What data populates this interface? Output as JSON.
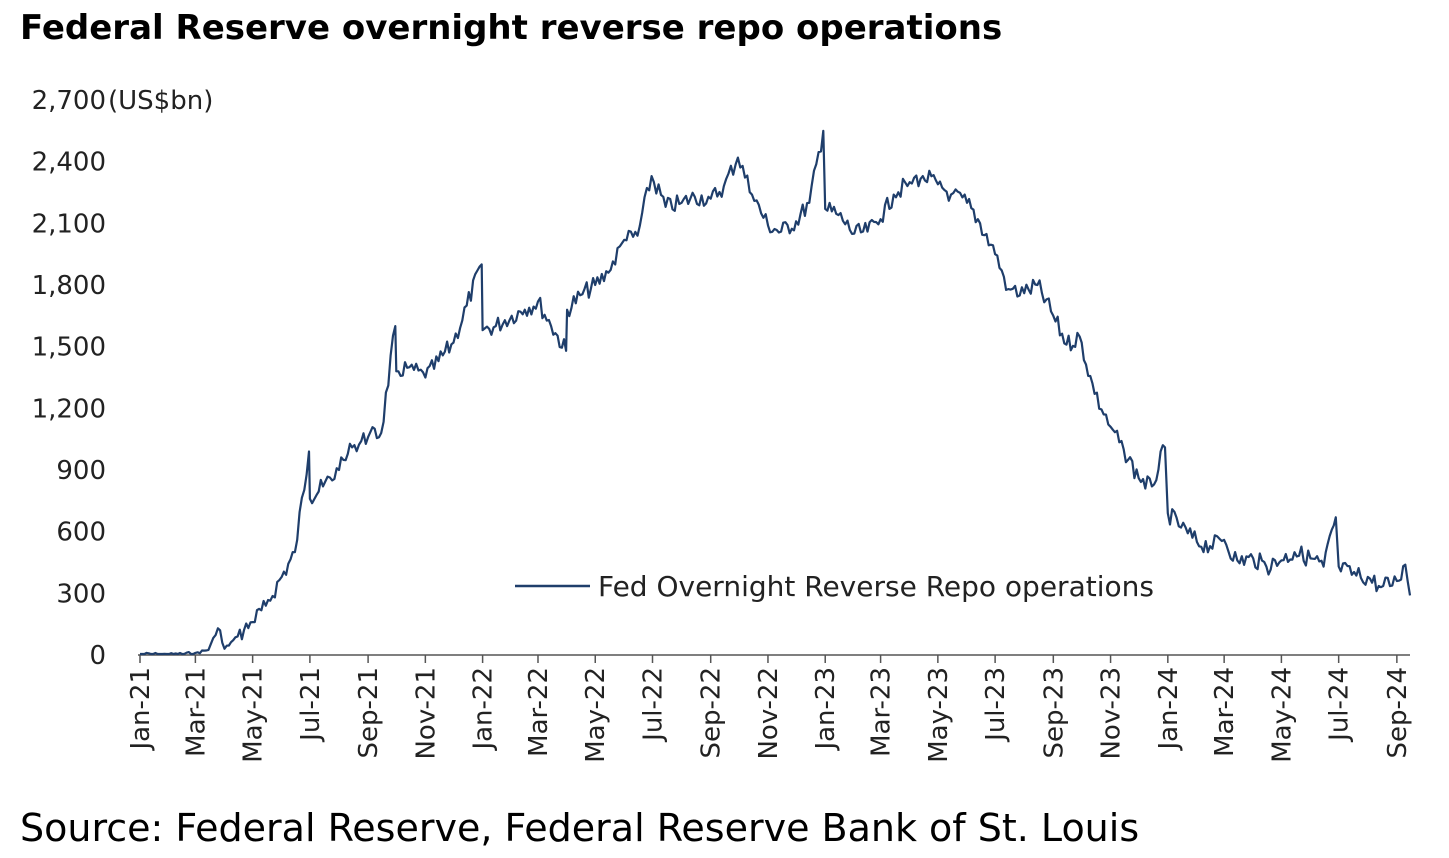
{
  "chart_data": {
    "type": "line",
    "title": "Federal Reserve overnight reverse repo operations",
    "ylabel": "(US$bn)",
    "ylim": [
      0,
      2700
    ],
    "yticks": [
      "0",
      "300",
      "600",
      "900",
      "1,200",
      "1,500",
      "1,800",
      "2,100",
      "2,400",
      "2,700"
    ],
    "ytick_values": [
      0,
      300,
      600,
      900,
      1200,
      1500,
      1800,
      2100,
      2400,
      2700
    ],
    "xticks": [
      "Jan-21",
      "Mar-21",
      "May-21",
      "Jul-21",
      "Sep-21",
      "Nov-21",
      "Jan-22",
      "Mar-22",
      "May-22",
      "Jul-22",
      "Sep-22",
      "Nov-22",
      "Jan-23",
      "Mar-23",
      "May-23",
      "Jul-23",
      "Sep-23",
      "Nov-23",
      "Jan-24",
      "Mar-24",
      "May-24",
      "Jul-24",
      "Sep-24"
    ],
    "legend_position": "lower-right",
    "grid": false,
    "series": [
      {
        "name": "Fed Overnight Reverse Repo operations",
        "color": "#1f3e6b",
        "x": [
          "2021-01-01",
          "2021-01-15",
          "2021-02-01",
          "2021-02-15",
          "2021-03-01",
          "2021-03-15",
          "2021-03-25",
          "2021-04-01",
          "2021-04-15",
          "2021-05-01",
          "2021-05-15",
          "2021-06-01",
          "2021-06-15",
          "2021-06-30",
          "2021-07-01",
          "2021-07-15",
          "2021-08-01",
          "2021-08-15",
          "2021-09-01",
          "2021-09-15",
          "2021-09-30",
          "2021-10-01",
          "2021-10-15",
          "2021-11-01",
          "2021-11-15",
          "2021-12-01",
          "2021-12-15",
          "2021-12-31",
          "2022-01-01",
          "2022-01-15",
          "2022-02-01",
          "2022-02-15",
          "2022-03-01",
          "2022-03-15",
          "2022-03-31",
          "2022-04-01",
          "2022-04-15",
          "2022-05-01",
          "2022-05-15",
          "2022-06-01",
          "2022-06-15",
          "2022-06-30",
          "2022-07-15",
          "2022-08-01",
          "2022-08-15",
          "2022-09-01",
          "2022-09-15",
          "2022-09-30",
          "2022-10-15",
          "2022-11-01",
          "2022-11-15",
          "2022-12-01",
          "2022-12-15",
          "2022-12-30",
          "2023-01-01",
          "2023-01-15",
          "2023-02-01",
          "2023-02-15",
          "2023-03-01",
          "2023-03-15",
          "2023-04-01",
          "2023-04-15",
          "2023-05-01",
          "2023-05-15",
          "2023-06-01",
          "2023-06-15",
          "2023-07-01",
          "2023-07-15",
          "2023-08-01",
          "2023-08-15",
          "2023-09-01",
          "2023-09-15",
          "2023-09-29",
          "2023-10-15",
          "2023-11-01",
          "2023-11-15",
          "2023-12-01",
          "2023-12-15",
          "2023-12-29",
          "2024-01-01",
          "2024-01-15",
          "2024-02-01",
          "2024-02-15",
          "2024-03-01",
          "2024-03-15",
          "2024-04-01",
          "2024-04-15",
          "2024-05-01",
          "2024-05-15",
          "2024-06-01",
          "2024-06-15",
          "2024-06-28",
          "2024-07-01",
          "2024-07-15",
          "2024-08-01",
          "2024-08-15",
          "2024-09-01",
          "2024-09-10",
          "2024-09-15"
        ],
        "values": [
          5,
          4,
          2,
          5,
          10,
          25,
          130,
          30,
          90,
          160,
          240,
          380,
          500,
          990,
          760,
          820,
          900,
          1010,
          1060,
          1080,
          1600,
          1380,
          1400,
          1350,
          1430,
          1520,
          1700,
          1900,
          1580,
          1600,
          1650,
          1680,
          1720,
          1600,
          1480,
          1680,
          1750,
          1800,
          1860,
          2020,
          2040,
          2330,
          2180,
          2200,
          2230,
          2220,
          2280,
          2420,
          2240,
          2090,
          2060,
          2110,
          2200,
          2550,
          2170,
          2140,
          2050,
          2060,
          2120,
          2240,
          2300,
          2330,
          2290,
          2240,
          2200,
          2100,
          1950,
          1780,
          1760,
          1800,
          1650,
          1510,
          1550,
          1270,
          1110,
          1000,
          860,
          820,
          1010,
          690,
          620,
          550,
          530,
          560,
          460,
          470,
          430,
          460,
          500,
          470,
          430,
          670,
          430,
          390,
          380,
          330,
          360,
          440,
          290
        ]
      }
    ]
  }
}
